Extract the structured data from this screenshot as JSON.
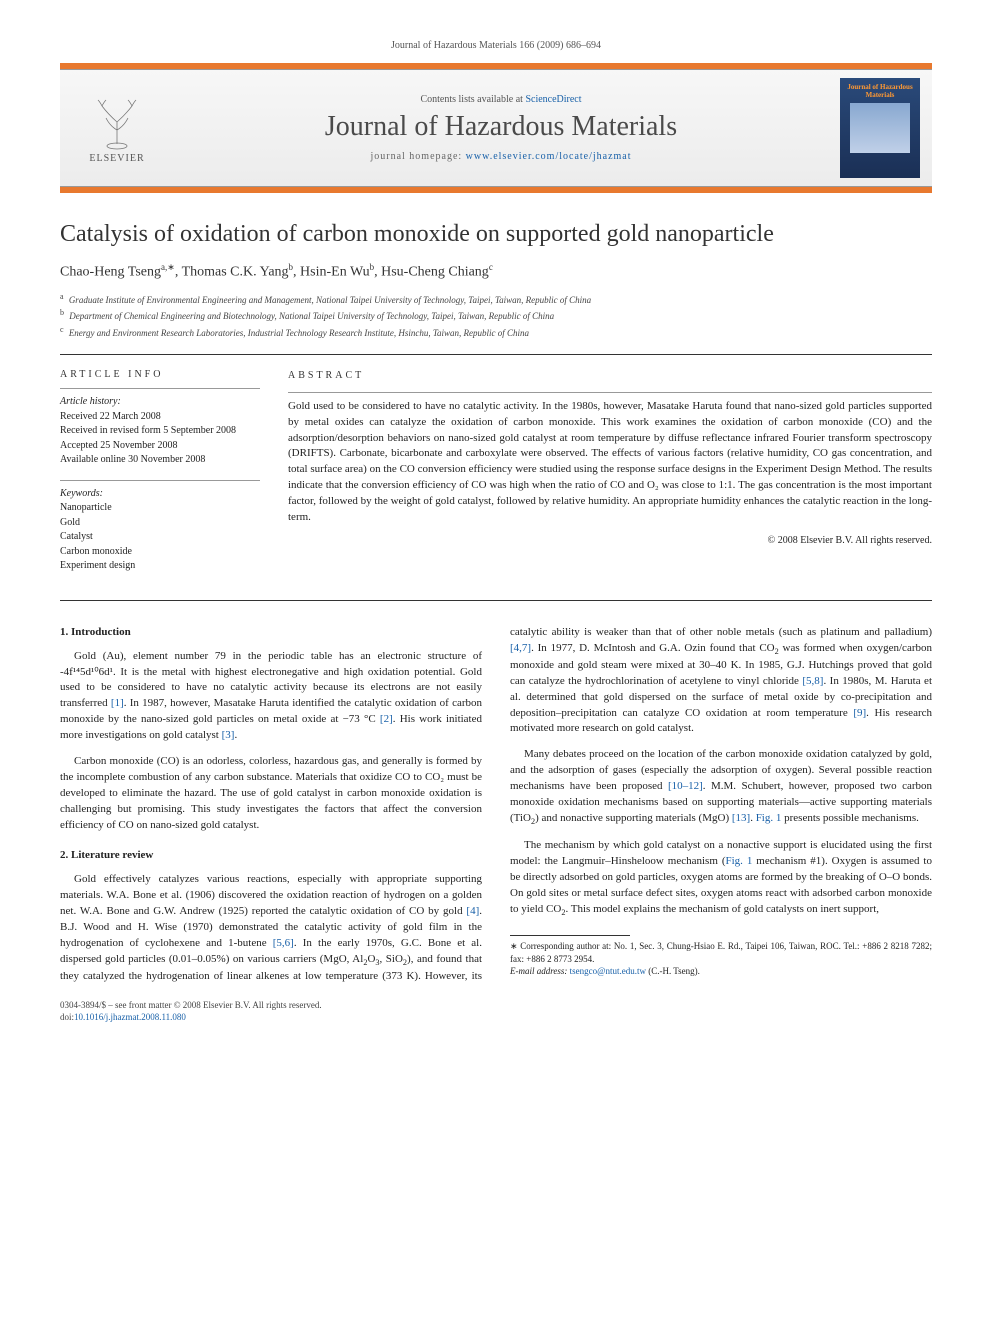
{
  "header": {
    "citation": "Journal of Hazardous Materials 166 (2009) 686–694",
    "contents_prefix": "Contents lists available at ",
    "contents_link": "ScienceDirect",
    "journal_name": "Journal of Hazardous Materials",
    "homepage_prefix": "journal homepage: ",
    "homepage_url": "www.elsevier.com/locate/jhazmat",
    "publisher": "ELSEVIER",
    "cover_text": "Journal of Hazardous Materials"
  },
  "article": {
    "title": "Catalysis of oxidation of carbon monoxide on supported gold nanoparticle",
    "authors_html": "Chao-Heng Tseng<sup>a,∗</sup>, Thomas C.K. Yang<sup>b</sup>, Hsin-En Wu<sup>b</sup>, Hsu-Cheng Chiang<sup>c</sup>",
    "affiliations": [
      {
        "sup": "a",
        "text": "Graduate Institute of Environmental Engineering and Management, National Taipei University of Technology, Taipei, Taiwan, Republic of China"
      },
      {
        "sup": "b",
        "text": "Department of Chemical Engineering and Biotechnology, National Taipei University of Technology, Taipei, Taiwan, Republic of China"
      },
      {
        "sup": "c",
        "text": "Energy and Environment Research Laboratories, Industrial Technology Research Institute, Hsinchu, Taiwan, Republic of China"
      }
    ]
  },
  "info": {
    "heading": "ARTICLE INFO",
    "history_label": "Article history:",
    "history": [
      "Received 22 March 2008",
      "Received in revised form 5 September 2008",
      "Accepted 25 November 2008",
      "Available online 30 November 2008"
    ],
    "keywords_label": "Keywords:",
    "keywords": [
      "Nanoparticle",
      "Gold",
      "Catalyst",
      "Carbon monoxide",
      "Experiment design"
    ]
  },
  "abstract": {
    "heading": "ABSTRACT",
    "text": "Gold used to be considered to have no catalytic activity. In the 1980s, however, Masatake Haruta found that nano-sized gold particles supported by metal oxides can catalyze the oxidation of carbon monoxide. This work examines the oxidation of carbon monoxide (CO) and the adsorption/desorption behaviors on nano-sized gold catalyst at room temperature by diffuse reflectance infrared Fourier transform spectroscopy (DRIFTS). Carbonate, bicarbonate and carboxylate were observed. The effects of various factors (relative humidity, CO gas concentration, and total surface area) on the CO conversion efficiency were studied using the response surface designs in the Experiment Design Method. The results indicate that the conversion efficiency of CO was high when the ratio of CO and O₂ was close to 1:1. The gas concentration is the most important factor, followed by the weight of gold catalyst, followed by relative humidity. An appropriate humidity enhances the catalytic reaction in the long-term.",
    "copyright": "© 2008 Elsevier B.V. All rights reserved."
  },
  "sections": {
    "s1": {
      "head": "1. Introduction",
      "paras": [
        "Gold (Au), element number 79 in the periodic table has an electronic structure of -4f¹⁴5d¹⁰6d¹. It is the metal with highest electronegative and high oxidation potential. Gold used to be considered to have no catalytic activity because its electrons are not easily transferred [1]. In 1987, however, Masatake Haruta identified the catalytic oxidation of carbon monoxide by the nano-sized gold particles on metal oxide at −73 °C [2]. His work initiated more investigations on gold catalyst [3].",
        "Carbon monoxide (CO) is an odorless, colorless, hazardous gas, and generally is formed by the incomplete combustion of any carbon substance. Materials that oxidize CO to CO₂ must be developed to eliminate the hazard. The use of gold catalyst in carbon monoxide oxidation is challenging but promising. This study investigates the factors that affect the conversion efficiency of CO on nano-sized gold catalyst."
      ]
    },
    "s2": {
      "head": "2. Literature review",
      "paras": [
        "Gold effectively catalyzes various reactions, especially with appropriate supporting materials. W.A. Bone et al. (1906) discovered the oxidation reaction of hydrogen on a golden net. W.A. Bone and G.W. Andrew (1925) reported the catalytic oxidation of CO by gold [4]. B.J. Wood and H. Wise (1970) demonstrated the catalytic activity of gold film in the hydrogenation of cyclohexene and 1-butene [5,6]. In the early 1970s, G.C. Bone et al. dispersed gold particles (0.01–0.05%) on various carriers (MgO, Al₂O₃, SiO₂), and found that they catalyzed the hydrogenation of linear alkenes at low temperature (373 K). However, its catalytic ability is weaker than that of other noble metals (such as platinum and palladium) [4,7]. In 1977, D. McIntosh and G.A. Ozin found that CO₂ was formed when oxygen/carbon monoxide and gold steam were mixed at 30–40 K. In 1985, G.J. Hutchings proved that gold can catalyze the hydrochlorination of acetylene to vinyl chloride [5,8]. In 1980s, M. Haruta et al. determined that gold dispersed on the surface of metal oxide by co-precipitation and deposition–precipitation can catalyze CO oxidation at room temperature [9]. His research motivated more research on gold catalyst.",
        "Many debates proceed on the location of the carbon monoxide oxidation catalyzed by gold, and the adsorption of gases (especially the adsorption of oxygen). Several possible reaction mechanisms have been proposed [10–12]. M.M. Schubert, however, proposed two carbon monoxide oxidation mechanisms based on supporting materials—active supporting materials (TiO₂) and nonactive supporting materials (MgO) [13]. Fig. 1 presents possible mechanisms.",
        "The mechanism by which gold catalyst on a nonactive support is elucidated using the first model: the Langmuir–Hinsheloow mechanism (Fig. 1 mechanism #1). Oxygen is assumed to be directly adsorbed on gold particles, oxygen atoms are formed by the breaking of O–O bonds. On gold sites or metal surface defect sites, oxygen atoms react with adsorbed carbon monoxide to yield CO₂. This model explains the mechanism of gold catalysts on inert support,"
      ]
    }
  },
  "footnotes": {
    "corr": "∗ Corresponding author at: No. 1, Sec. 3, Chung-Hsiao E. Rd., Taipei 106, Taiwan, ROC. Tel.: +886 2 8218 7282; fax: +886 2 8773 2954.",
    "email_label": "E-mail address: ",
    "email": "tsengco@ntut.edu.tw",
    "email_suffix": " (C.-H. Tseng)."
  },
  "footer": {
    "line1": "0304-3894/$ – see front matter © 2008 Elsevier B.V. All rights reserved.",
    "doi_label": "doi:",
    "doi": "10.1016/j.jhazmat.2008.11.080"
  },
  "colors": {
    "link": "#1860a8",
    "accent_bar": "#e8792f",
    "cover_bg_top": "#2a4a7a",
    "cover_bg_bottom": "#1a2f55"
  }
}
